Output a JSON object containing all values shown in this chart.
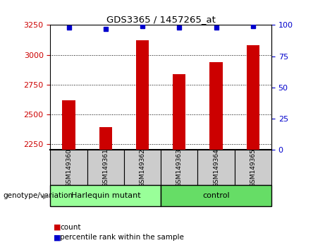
{
  "title": "GDS3365 / 1457265_at",
  "samples": [
    "GSM149360",
    "GSM149361",
    "GSM149362",
    "GSM149363",
    "GSM149364",
    "GSM149365"
  ],
  "counts": [
    2620,
    2390,
    3120,
    2840,
    2940,
    3080
  ],
  "percentile_ranks": [
    98,
    97,
    99,
    98,
    98,
    99
  ],
  "ylim_left": [
    2200,
    3250
  ],
  "ylim_right": [
    0,
    100
  ],
  "yticks_left": [
    2250,
    2500,
    2750,
    3000,
    3250
  ],
  "yticks_right": [
    0,
    25,
    50,
    75,
    100
  ],
  "bar_color": "#cc0000",
  "dot_color": "#0000cc",
  "bar_width": 0.35,
  "groups": [
    {
      "label": "Harlequin mutant",
      "indices": [
        0,
        1,
        2
      ],
      "color": "#99ff99"
    },
    {
      "label": "control",
      "indices": [
        3,
        4,
        5
      ],
      "color": "#66dd66"
    }
  ],
  "group_label": "genotype/variation",
  "legend_count_label": "count",
  "legend_percentile_label": "percentile rank within the sample",
  "grid_color": "#000000",
  "background_color": "#ffffff",
  "plot_bg_color": "#ffffff",
  "tick_label_color_left": "#cc0000",
  "tick_label_color_right": "#0000cc",
  "ybaseline": 2200,
  "sample_box_color": "#cccccc",
  "divider_color": "#555555"
}
